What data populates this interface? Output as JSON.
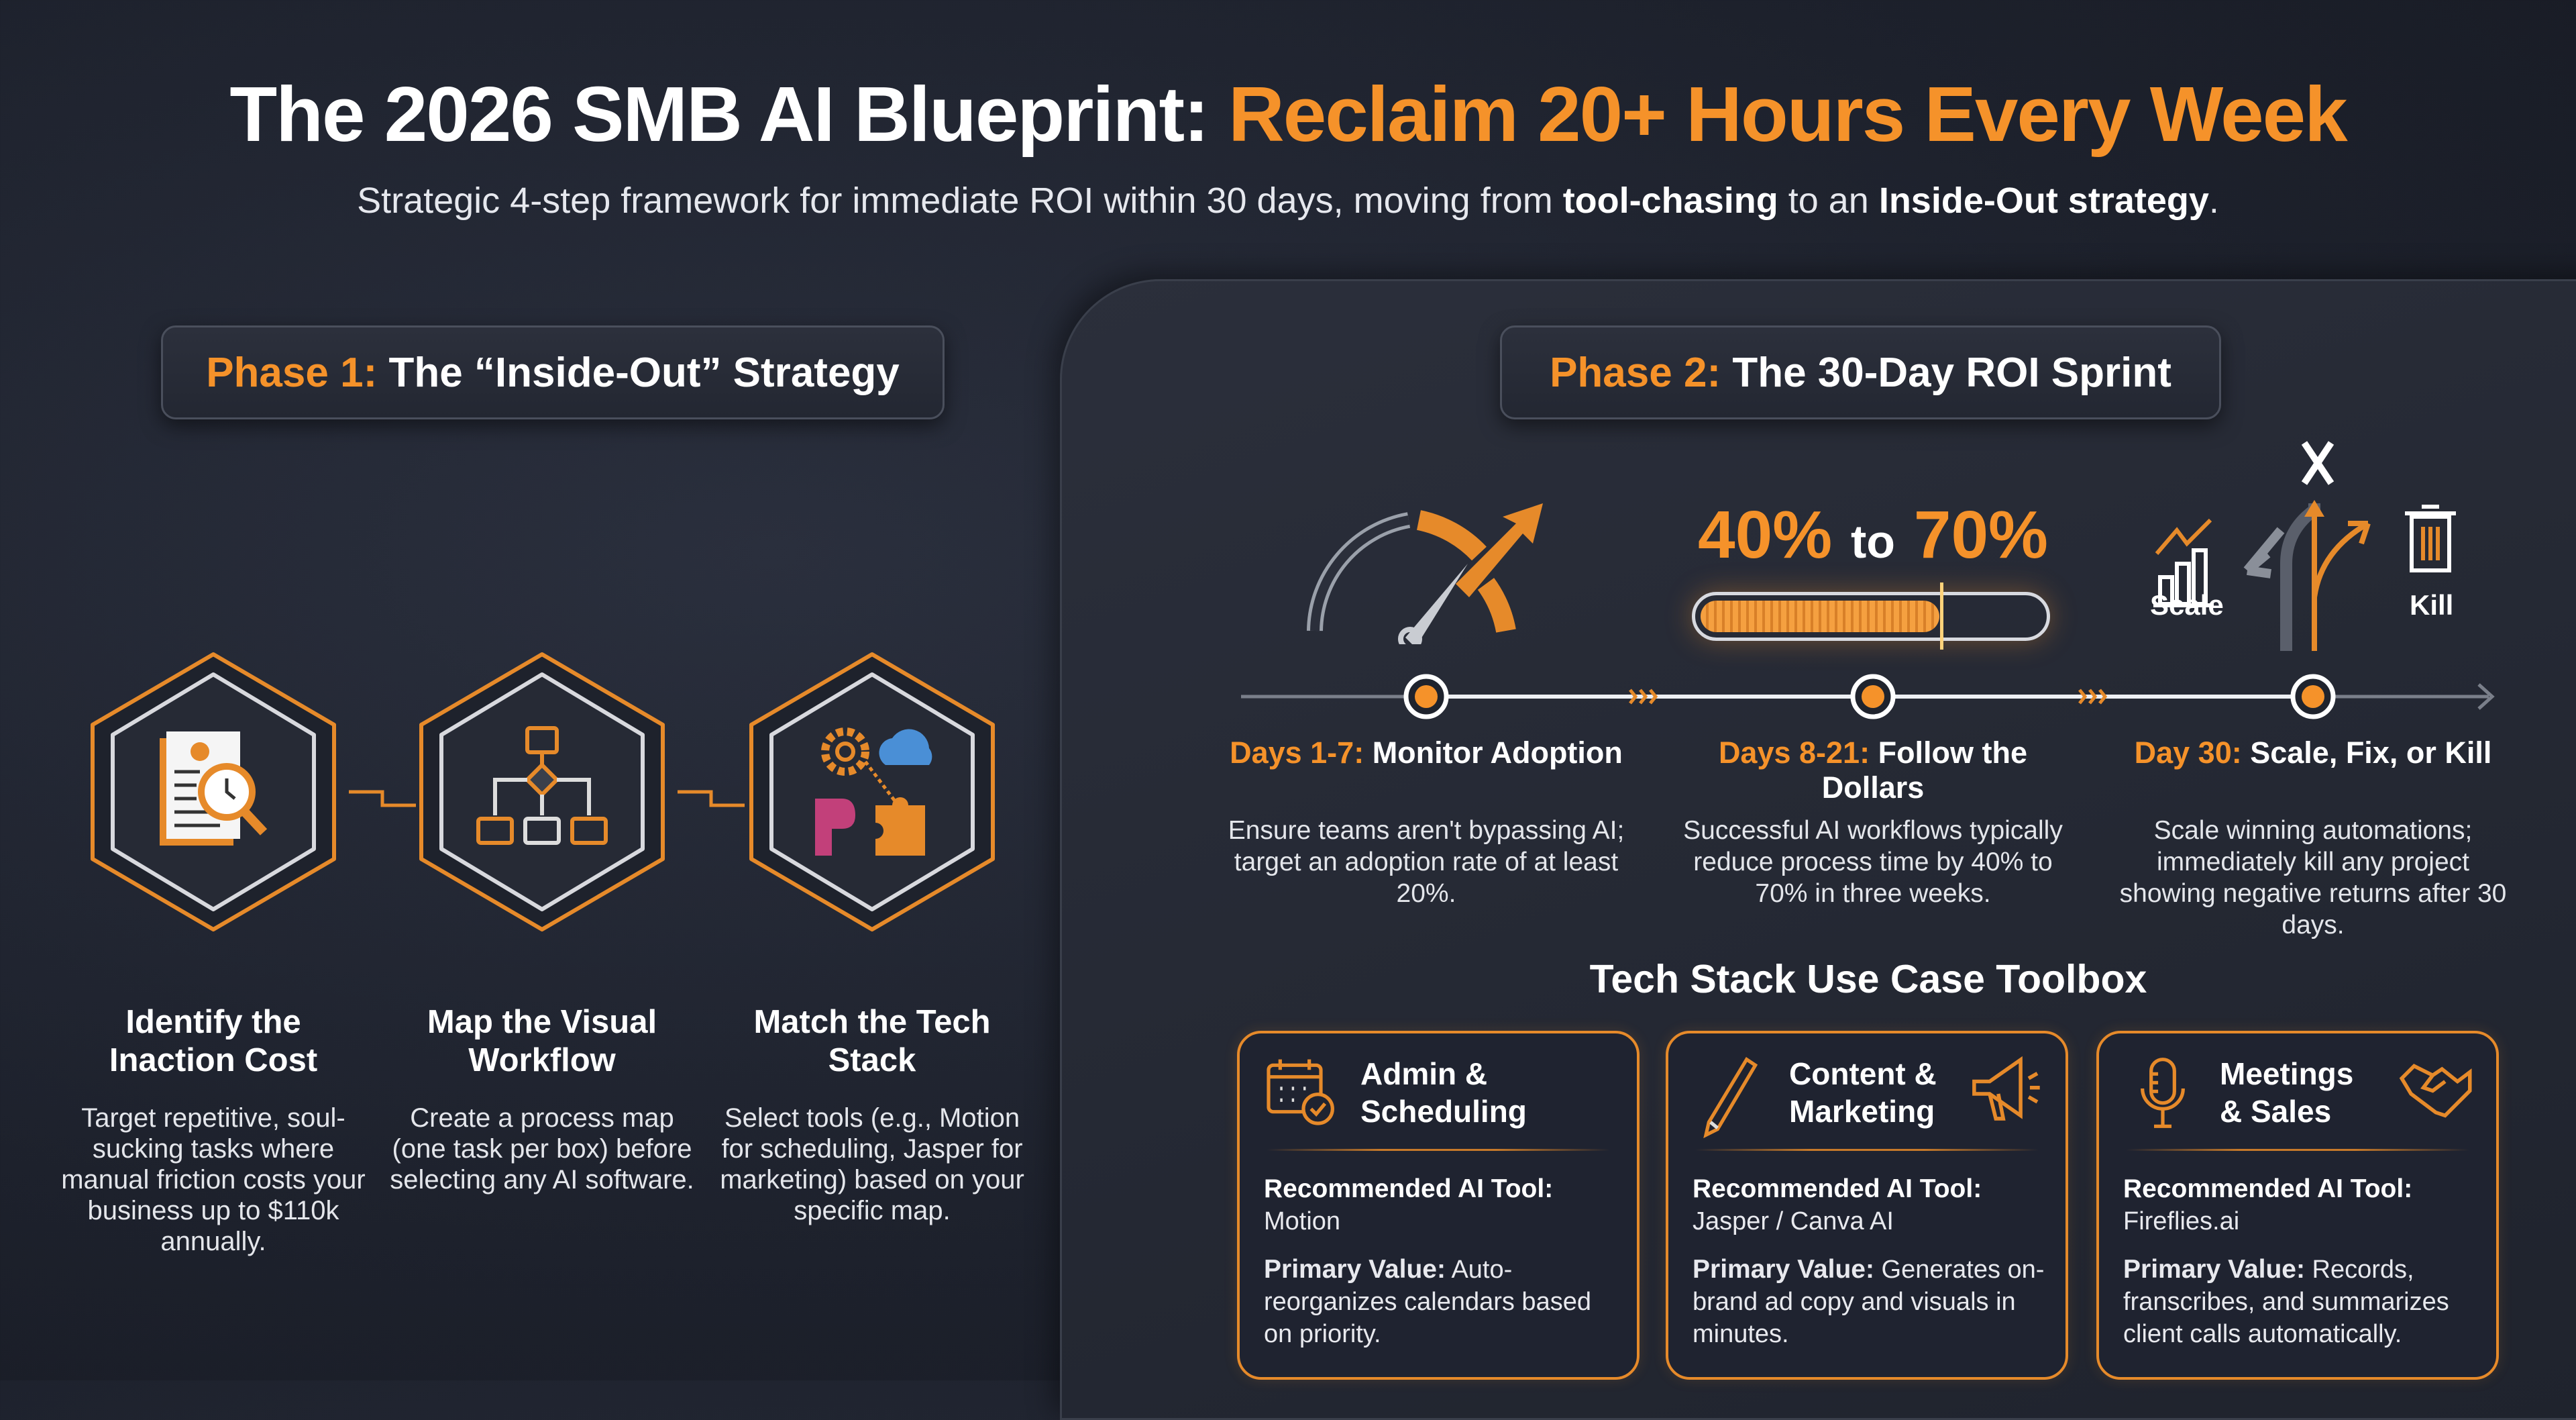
{
  "header": {
    "title_white": "The 2026 SMB AI Blueprint: ",
    "title_orange": "Reclaim 20+ Hours Every Week",
    "subtitle_pre": "Strategic 4-step framework for immediate ROI within 30 days, moving from ",
    "subtitle_b1": "tool-chasing",
    "subtitle_mid": " to an ",
    "subtitle_b2": "Inside-Out strategy",
    "subtitle_end": "."
  },
  "phase1": {
    "label": "Phase 1:",
    "title": " The “Inside-Out” Strategy",
    "steps": [
      {
        "icon": "document-clock-magnifier-icon",
        "title": "Identify the Inaction Cost",
        "desc": "Target repetitive, soul-sucking tasks where manual friction costs your business up to $110k annually."
      },
      {
        "icon": "flowchart-icon",
        "title": "Map the Visual Workflow",
        "desc": "Create a process map (one task per box) before selecting any AI software."
      },
      {
        "icon": "gear-cloud-puzzle-icon",
        "title": "Match the Tech Stack",
        "desc": "Select tools (e.g., Motion for scheduling, Jasper for marketing) based on your specific map."
      }
    ]
  },
  "phase2": {
    "label": "Phase 2:",
    "title": " The 30-Day ROI Sprint",
    "range_from": "40%",
    "range_to_word": "to",
    "range_to": "70%",
    "progress_range": [
      40,
      70
    ],
    "scale_label": "Scale",
    "kill_label": "Kill",
    "milestones": [
      {
        "label": "Days 1-7:",
        "title": " Monitor Adoption",
        "desc": "Ensure teams aren't bypassing AI; target an adoption rate of at least 20%."
      },
      {
        "label": "Days 8-21:",
        "title": " Follow the Dollars",
        "desc": "Successful AI workflows typically reduce process time by 40% to 70% in three weeks."
      },
      {
        "label": "Day 30:",
        "title": " Scale, Fix, or Kill",
        "desc": "Scale winning automations; immediately kill any project showing negative returns after 30 days."
      }
    ]
  },
  "toolbox": {
    "title": "Tech Stack Use Case Toolbox",
    "tool_label": "Recommended AI Tool:",
    "value_label": "Primary Value:",
    "cards": [
      {
        "title1": "Admin &",
        "title2": "Scheduling",
        "tool": "Motion",
        "value": "Auto-reorganizes calendars based on priority.",
        "icon": "calendar-check-icon"
      },
      {
        "title1": "Content &",
        "title2": "Marketing",
        "tool": "Jasper / Canva AI",
        "value": "Generates on-brand ad copy and visuals in minutes.",
        "icon": "pencil-megaphone-icon"
      },
      {
        "title1": "Meetings",
        "title2": "& Sales",
        "tool": "Fireflies.ai",
        "value": "Records, franscribes, and summarizes client calls automatically.",
        "icon": "microphone-handshake-icon"
      }
    ]
  },
  "colors": {
    "accent": "#f5922a",
    "background": "#1d212c",
    "text": "#ffffff"
  }
}
